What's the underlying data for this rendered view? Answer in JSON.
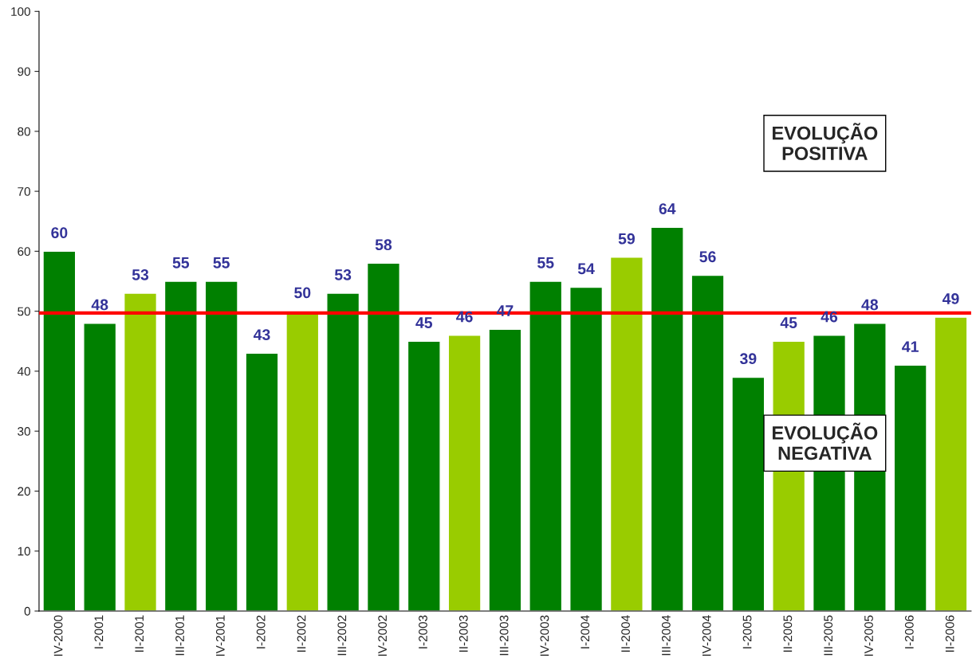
{
  "chart_data": {
    "type": "bar",
    "categories": [
      "IV-2000",
      "I-2001",
      "II-2001",
      "III-2001",
      "IV-2001",
      "I-2002",
      "II-2002",
      "III-2002",
      "IV-2002",
      "I-2003",
      "II-2003",
      "III-2003",
      "IV-2003",
      "I-2004",
      "II-2004",
      "III-2004",
      "IV-2004",
      "I-2005",
      "II-2005",
      "III-2005",
      "IV-2005",
      "I-2006",
      "II-2006"
    ],
    "values": [
      60,
      48,
      53,
      55,
      55,
      43,
      50,
      53,
      58,
      45,
      46,
      47,
      55,
      54,
      59,
      64,
      56,
      39,
      45,
      46,
      48,
      41,
      49
    ],
    "colors": [
      "#008000",
      "#008000",
      "#99cc00",
      "#008000",
      "#008000",
      "#008000",
      "#99cc00",
      "#008000",
      "#008000",
      "#008000",
      "#99cc00",
      "#008000",
      "#008000",
      "#008000",
      "#99cc00",
      "#008000",
      "#008000",
      "#008000",
      "#99cc00",
      "#008000",
      "#008000",
      "#008000",
      "#99cc00"
    ],
    "data_labels": true,
    "ylim": [
      0,
      100
    ],
    "yticks": [
      0,
      10,
      20,
      30,
      40,
      50,
      60,
      70,
      80,
      90,
      100
    ],
    "grid": false,
    "legend": false,
    "ref_lines": [
      {
        "axis": "y",
        "value": 49.7,
        "color": "#ff0000",
        "line_style": "solid"
      }
    ],
    "annotations": [
      "EVOLUÇÃO\nPOSITIVA",
      "EVOLUÇÃO\nNEGATIVA"
    ]
  }
}
